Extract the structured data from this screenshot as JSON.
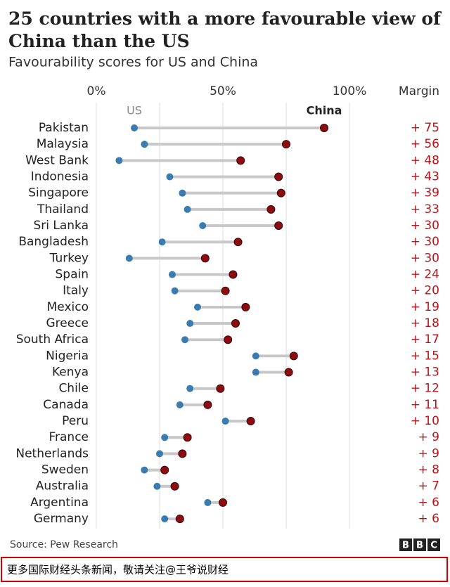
{
  "chart_data": {
    "type": "dumbbell",
    "title": "25 countries with a more favourable view of China than the US",
    "subtitle": "Favourability scores for US and China",
    "categories": [
      "Pakistan",
      "Malaysia",
      "West Bank",
      "Indonesia",
      "Singapore",
      "Thailand",
      "Sri Lanka",
      "Bangladesh",
      "Turkey",
      "Spain",
      "Italy",
      "Mexico",
      "Greece",
      "South Africa",
      "Nigeria",
      "Kenya",
      "Chile",
      "Canada",
      "Peru",
      "France",
      "Netherlands",
      "Sweden",
      "Australia",
      "Argentina",
      "Germany"
    ],
    "series": [
      {
        "name": "US",
        "color": "#3a7bb0",
        "values": [
          15,
          19,
          9,
          29,
          34,
          36,
          42,
          26,
          13,
          30,
          31,
          40,
          37,
          35,
          63,
          63,
          37,
          33,
          51,
          27,
          25,
          19,
          24,
          44,
          27
        ]
      },
      {
        "name": "China",
        "color": "#8c0c12",
        "values": [
          90,
          75,
          57,
          72,
          73,
          69,
          72,
          56,
          43,
          54,
          51,
          59,
          55,
          52,
          78,
          76,
          49,
          44,
          61,
          36,
          34,
          27,
          31,
          50,
          33
        ]
      }
    ],
    "margin_title": "Margin",
    "margin_labels": [
      "+ 75",
      "+ 56",
      "+ 48",
      "+ 43",
      "+ 39",
      "+ 33",
      "+ 30",
      "+ 30",
      "+ 30",
      "+ 24",
      "+ 20",
      "+ 19",
      "+ 18",
      "+ 17",
      "+ 15",
      "+ 13",
      "+ 12",
      "+ 11",
      "+ 10",
      "+ 9",
      "+ 9",
      "+ 8",
      "+ 7",
      "+ 6",
      "+ 6"
    ],
    "xlim": [
      0,
      100
    ],
    "xticks": [
      {
        "value": 0,
        "label": "0%"
      },
      {
        "value": 50,
        "label": "50%"
      },
      {
        "value": 100,
        "label": "100%"
      }
    ],
    "gridlines": [
      0,
      25,
      50,
      75,
      100
    ],
    "source": "Source: Pew Research",
    "logo": [
      "B",
      "B",
      "C"
    ]
  },
  "banner": "更多国际财经头条新闻，敬请关注@王爷说财经"
}
